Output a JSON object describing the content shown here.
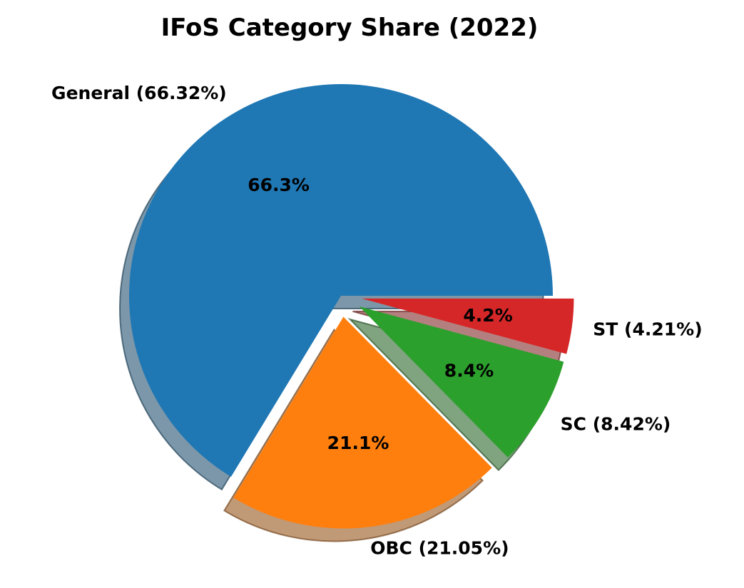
{
  "chart_data": {
    "type": "pie",
    "title": "IFoS Category Share (2022)",
    "slices": [
      {
        "label": "General (66.32%)",
        "value": 66.32,
        "pct_label": "66.3%",
        "color": "#1f77b4",
        "exploded": false
      },
      {
        "label": "OBC (21.05%)",
        "value": 21.05,
        "pct_label": "21.1%",
        "color": "#ff7f0e",
        "exploded": true
      },
      {
        "label": "SC (8.42%)",
        "value": 8.42,
        "pct_label": "8.4%",
        "color": "#2ca02c",
        "exploded": true
      },
      {
        "label": "ST (4.21%)",
        "value": 4.21,
        "pct_label": "4.2%",
        "color": "#d62728",
        "exploded": true
      }
    ],
    "start_angle_deg": 0,
    "direction": "counterclockwise",
    "shadow": true,
    "legend": "none"
  }
}
